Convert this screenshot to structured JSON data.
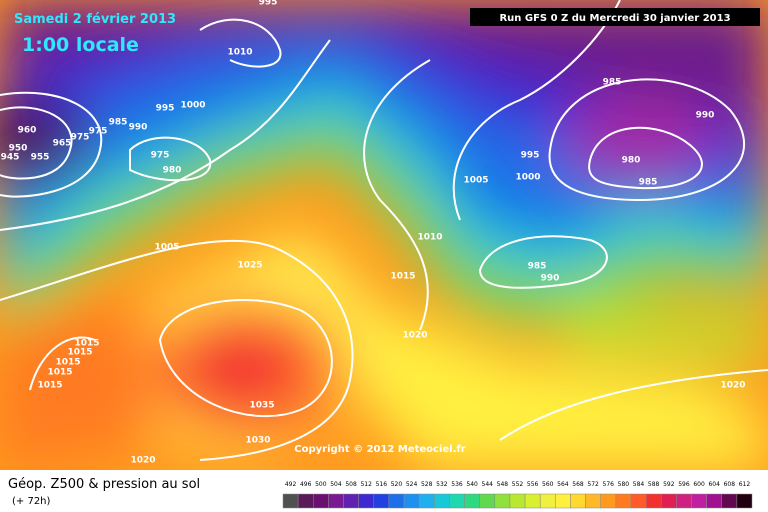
{
  "header": {
    "date": "Samedi 2 février 2013",
    "time": "1:00 locale",
    "run": "Run GFS 0 Z du Mercredi 30 janvier 2013"
  },
  "isobar_labels": [
    "995",
    "1010",
    "995",
    "1000",
    "960",
    "950",
    "945",
    "955",
    "965",
    "975",
    "975",
    "985",
    "990",
    "975",
    "980",
    "1005",
    "1025",
    "1015",
    "1015",
    "1015",
    "1015",
    "1015",
    "1035",
    "1030",
    "1020",
    "1020",
    "1015",
    "1010",
    "1005",
    "995",
    "1000",
    "985",
    "990",
    "985",
    "980",
    "985",
    "990",
    "1020"
  ],
  "copyright": "Copyright © 2012 Meteociel.fr",
  "footer": {
    "title": "Géop. Z500 & pression au sol",
    "lead": "(+ 72h)"
  },
  "scale": [
    "492",
    "496",
    "500",
    "504",
    "508",
    "512",
    "516",
    "520",
    "524",
    "528",
    "532",
    "536",
    "540",
    "544",
    "548",
    "552",
    "556",
    "560",
    "564",
    "568",
    "572",
    "576",
    "580",
    "584",
    "588",
    "592",
    "596",
    "600",
    "604",
    "608",
    "612"
  ]
}
